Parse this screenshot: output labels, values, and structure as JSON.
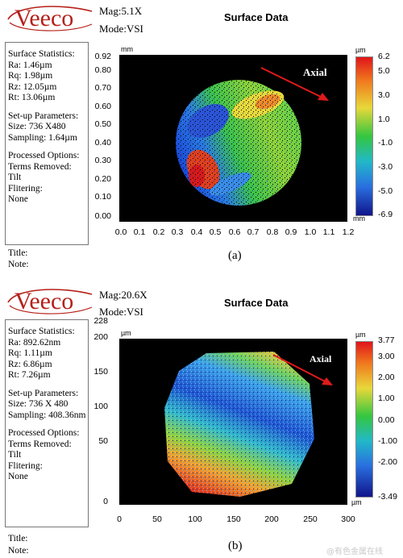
{
  "logo_text": "Veeco",
  "panel_a": {
    "mag": "Mag:5.1X",
    "mode": "Mode:VSI",
    "title": "Surface Data",
    "stats_heading": "Surface Statistics:",
    "stats": [
      "Ra: 1.46µm",
      "Rq: 1.98µm",
      "Rz: 12.05µm",
      "Rt: 13.06µm"
    ],
    "setup_heading": "Set-up Parameters:",
    "setup": [
      "Size: 736 X480",
      "Sampling: 1.64µm"
    ],
    "processed_heading": "Processed Options:",
    "processed": [
      "Terms Removed:",
      "Tilt",
      "Flitering:",
      "None"
    ],
    "title_label": "Title:",
    "note_label": "Note:",
    "caption": "(a)",
    "axial_label": "Axial",
    "y_unit": "mm",
    "x_unit": "mm",
    "cbar_unit": "µm",
    "y_ticks": [
      "0.92",
      "0.80",
      "0.70",
      "0.60",
      "0.50",
      "0.40",
      "0.30",
      "0.20",
      "0.10",
      "0.00"
    ],
    "x_ticks": [
      "0.0",
      "0.1",
      "0.2",
      "0.3",
      "0.4",
      "0.5",
      "0.6",
      "0.7",
      "0.8",
      "0.9",
      "1.0",
      "1.1",
      "1.2"
    ],
    "cbar_ticks": [
      "6.2",
      "5.0",
      "3.0",
      "1.0",
      "-1.0",
      "-3.0",
      "-5.0",
      "-6.9"
    ]
  },
  "panel_b": {
    "mag": "Mag:20.6X",
    "mode": "Mode:VSI",
    "title": "Surface Data",
    "stats_heading": "Surface Statistics:",
    "stats": [
      "Ra: 892.62nm",
      "Rq: 1.11µm",
      "Rz: 6.86µm",
      "Rt: 7.26µm"
    ],
    "setup_heading": "Set-up Parameters:",
    "setup": [
      "Size: 736 X 480",
      "Sampling: 408.36nm"
    ],
    "processed_heading": "Processed Options:",
    "processed": [
      "Terms Removed:",
      "Tilt",
      "Flitering:",
      "None"
    ],
    "title_label": "Title:",
    "note_label": "Note:",
    "caption": "(b)",
    "axial_label": "Axial",
    "y_unit": "µm",
    "x_unit": "µm",
    "cbar_unit": "µm",
    "y_ticks": [
      "228",
      "200",
      "150",
      "100",
      "50",
      "0"
    ],
    "x_ticks": [
      "0",
      "50",
      "100",
      "150",
      "200",
      "250",
      "300"
    ],
    "cbar_ticks": [
      "3.77",
      "3.00",
      "2.00",
      "1.00",
      "0.00",
      "-1.00",
      "-2.00",
      "-3.49"
    ]
  },
  "watermark": "@有色金属在线",
  "colors": {
    "logo_red": "#b5211b",
    "arrow_red": "#e01a1a",
    "plot_bg": "#000000",
    "cbar_top": "#e0151a",
    "cbar_mid": "#35c640",
    "cbar_bottom": "#10158a"
  }
}
